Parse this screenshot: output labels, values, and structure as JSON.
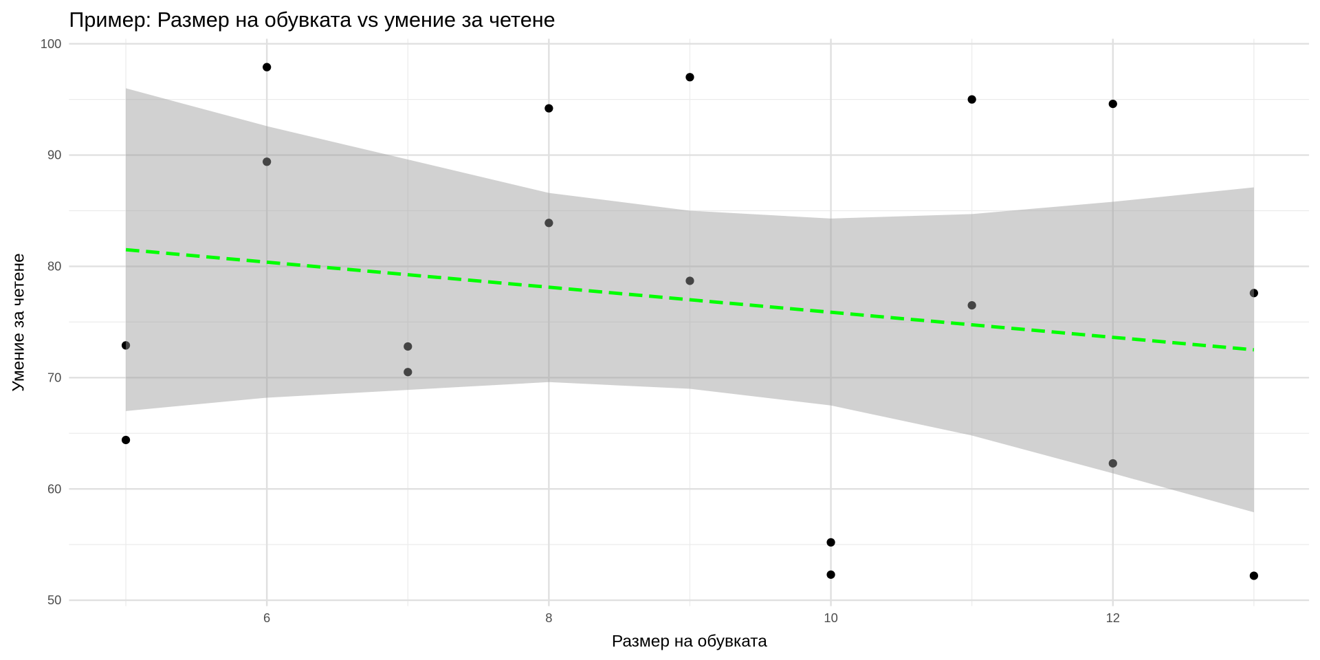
{
  "chart_data": {
    "type": "scatter",
    "title": "Пример: Размер на обувката vs умение за четене",
    "xlabel": "Размер на обувката",
    "ylabel": "Умение за четене",
    "xlim": [
      4.8,
      13.4
    ],
    "ylim": [
      50,
      100
    ],
    "xticks": [
      6,
      8,
      10,
      12
    ],
    "yticks": [
      50,
      60,
      70,
      80,
      90,
      100
    ],
    "grid": true,
    "points": [
      {
        "x": 5,
        "y": 72.9
      },
      {
        "x": 5,
        "y": 64.4
      },
      {
        "x": 6,
        "y": 97.9
      },
      {
        "x": 6,
        "y": 89.4
      },
      {
        "x": 7,
        "y": 72.8
      },
      {
        "x": 7,
        "y": 70.5
      },
      {
        "x": 8,
        "y": 94.2
      },
      {
        "x": 8,
        "y": 83.9
      },
      {
        "x": 9,
        "y": 97.0
      },
      {
        "x": 9,
        "y": 78.7
      },
      {
        "x": 10,
        "y": 55.2
      },
      {
        "x": 10,
        "y": 52.3
      },
      {
        "x": 11,
        "y": 95.0
      },
      {
        "x": 11,
        "y": 76.5
      },
      {
        "x": 12,
        "y": 94.6
      },
      {
        "x": 12,
        "y": 62.3
      },
      {
        "x": 13,
        "y": 77.6
      },
      {
        "x": 13,
        "y": 52.2
      }
    ],
    "fit_line": {
      "x": [
        5,
        13
      ],
      "y": [
        81.5,
        72.5
      ],
      "color": "#00ff00",
      "style": "dashed"
    },
    "confidence_band": {
      "x": [
        5,
        6,
        7,
        8,
        9,
        10,
        11,
        12,
        13
      ],
      "lower": [
        67.0,
        68.2,
        68.9,
        69.6,
        69.0,
        67.5,
        64.8,
        61.4,
        57.9
      ],
      "upper": [
        96.0,
        92.6,
        89.6,
        86.6,
        85.0,
        84.3,
        84.7,
        85.8,
        87.1
      ],
      "color": "#999999"
    }
  }
}
